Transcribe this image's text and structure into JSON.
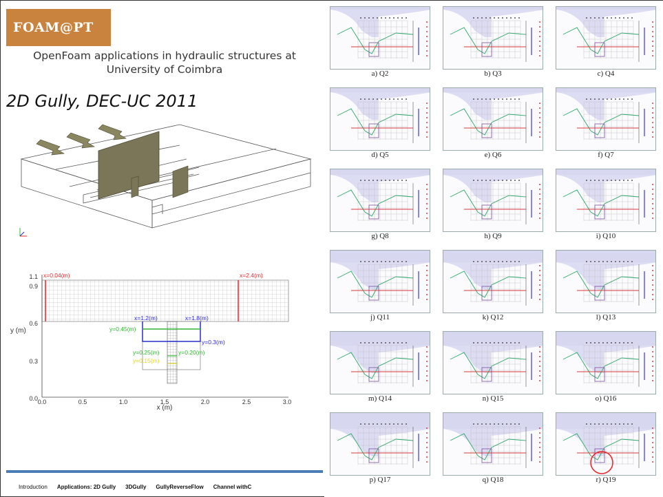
{
  "logo": {
    "text": "FOAM@PT"
  },
  "subtitle": "OpenFoam applications in hydraulic structures at University of Coimbra",
  "heading": "2D Gully, DEC-UC 2011",
  "mesh_plot": {
    "xlabel": "x (m)",
    "ylabel": "y (m)",
    "xticks": [
      "0.0",
      "0.5",
      "1.0",
      "1.5",
      "2.0",
      "2.5",
      "3.0"
    ],
    "yticks": [
      "0.0",
      "0.3",
      "0.6",
      "0.9",
      "1.1"
    ],
    "annotations": {
      "x_left": "x=0.04(m)",
      "x_right": "x=2.4(m)",
      "x_gully_left": "x=1.2(m)",
      "x_gully_right": "x=1.8(m)",
      "y_045": "y=0.45(m)",
      "y_03": "y=0.3(m)",
      "y_025": "y=0.25(m)",
      "y_020": "y=0.20(m)",
      "y_015": "y=0.15(m)"
    },
    "colors": {
      "red": "#e8262a",
      "blue": "#2a2ad8",
      "green": "#2fb82f",
      "yellow": "#e6d520"
    }
  },
  "result_cells": [
    {
      "caption": "a) Q2"
    },
    {
      "caption": "b) Q3"
    },
    {
      "caption": "c) Q4"
    },
    {
      "caption": "d) Q5"
    },
    {
      "caption": "e) Q6"
    },
    {
      "caption": "f) Q7"
    },
    {
      "caption": "g) Q8"
    },
    {
      "caption": "h) Q9"
    },
    {
      "caption": "i) Q10"
    },
    {
      "caption": "j) Q11"
    },
    {
      "caption": "k) Q12"
    },
    {
      "caption": "l) Q13"
    },
    {
      "caption": "m) Q14"
    },
    {
      "caption": "n) Q15"
    },
    {
      "caption": "o) Q16"
    },
    {
      "caption": "p) Q17"
    },
    {
      "caption": "q) Q18"
    },
    {
      "caption": "r) Q19"
    }
  ],
  "footer": {
    "nav": [
      "Introduction",
      "Applications: 2D Gully",
      "3DGully",
      "GullyReverseFlow",
      "Channel withC"
    ]
  }
}
